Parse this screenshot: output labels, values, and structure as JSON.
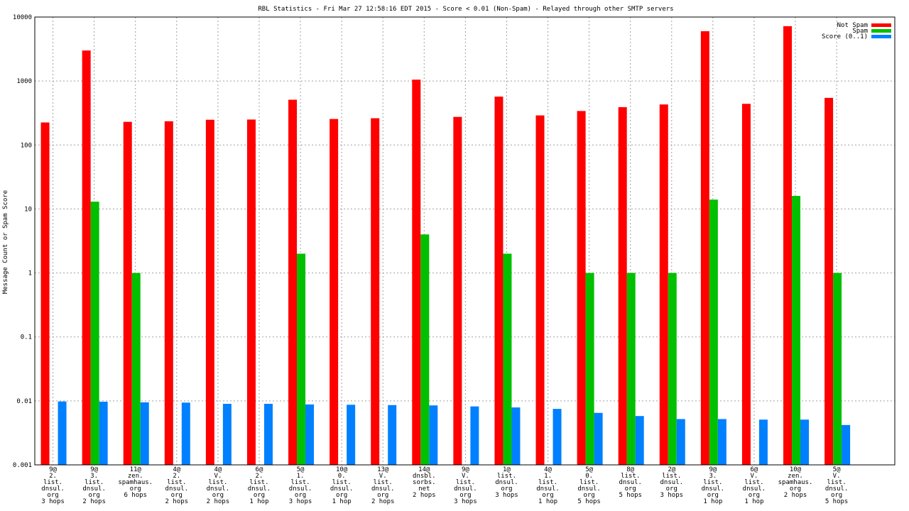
{
  "chart_data": {
    "type": "bar",
    "title": "RBL Statistics - Fri Mar 27 12:58:16 EDT 2015 - Score < 0.01 (Non-Spam) - Relayed through other SMTP servers",
    "xlabel": "",
    "ylabel": "Message Count or Spam Score",
    "yscale": "log",
    "ylim": [
      0.001,
      10000
    ],
    "yticks": [
      "0.001",
      "0.01",
      "0.1",
      "1",
      "10",
      "100",
      "1000",
      "10000"
    ],
    "grid": true,
    "legend_position": "top-right",
    "categories": [
      [
        "9@",
        "2.",
        "list.",
        "dnsul.",
        "org",
        "3 hops"
      ],
      [
        "9@",
        "3.",
        "list.",
        "dnsul.",
        "org",
        "2 hops"
      ],
      [
        "11@",
        "zen.",
        "spamhaus.",
        "org",
        "6 hops"
      ],
      [
        "4@",
        "2.",
        "list.",
        "dnsul.",
        "org",
        "2 hops"
      ],
      [
        "4@",
        "V.",
        "list.",
        "dnsul.",
        "org",
        "2 hops"
      ],
      [
        "6@",
        "2.",
        "list.",
        "dnsul.",
        "org",
        "1 hop"
      ],
      [
        "5@",
        "1.",
        "list.",
        "dnsul.",
        "org",
        "3 hops"
      ],
      [
        "10@",
        "0.",
        "list.",
        "dnsul.",
        "org",
        "1 hop"
      ],
      [
        "13@",
        "V.",
        "list.",
        "dnsul.",
        "org",
        "2 hops"
      ],
      [
        "14@",
        "dnsbl.",
        "sorbs.",
        "net",
        "2 hops"
      ],
      [
        "9@",
        "V.",
        "list.",
        "dnsul.",
        "org",
        "3 hops"
      ],
      [
        "1@",
        "list.",
        "dnsul.",
        "org",
        "3 hops"
      ],
      [
        "4@",
        "1.",
        "list.",
        "dnsul.",
        "org",
        "1 hop"
      ],
      [
        "5@",
        "0.",
        "list.",
        "dnsul.",
        "org",
        "5 hops"
      ],
      [
        "8@",
        "list.",
        "dnsul.",
        "org",
        "5 hops"
      ],
      [
        "2@",
        "list.",
        "dnsul.",
        "org",
        "3 hops"
      ],
      [
        "9@",
        "3.",
        "list.",
        "dnsul.",
        "org",
        "1 hop"
      ],
      [
        "6@",
        "V.",
        "list.",
        "dnsul.",
        "org",
        "1 hop"
      ],
      [
        "10@",
        "zen.",
        "spamhaus.",
        "org",
        "2 hops"
      ],
      [
        "5@",
        "V.",
        "list.",
        "dnsul.",
        "org",
        "5 hops"
      ]
    ],
    "series": [
      {
        "name": "Not Spam",
        "color": "#ff0000",
        "values": [
          225,
          3000,
          230,
          235,
          248,
          250,
          510,
          255,
          262,
          1050,
          275,
          570,
          290,
          340,
          390,
          430,
          6000,
          440,
          7200,
          545
        ]
      },
      {
        "name": "Spam",
        "color": "#00c000",
        "values": [
          null,
          13,
          1,
          null,
          null,
          null,
          2,
          null,
          null,
          4,
          null,
          2,
          null,
          1,
          1,
          1,
          14,
          null,
          16,
          1
        ]
      },
      {
        "name": "Score (0..1)",
        "color": "#0080ff",
        "values": [
          0.0098,
          0.0097,
          0.0095,
          0.0094,
          0.009,
          0.009,
          0.0088,
          0.0087,
          0.0086,
          0.0085,
          0.0082,
          0.0079,
          0.0075,
          0.0065,
          0.0058,
          0.0052,
          0.0052,
          0.0051,
          0.0051,
          0.0042
        ]
      }
    ]
  }
}
